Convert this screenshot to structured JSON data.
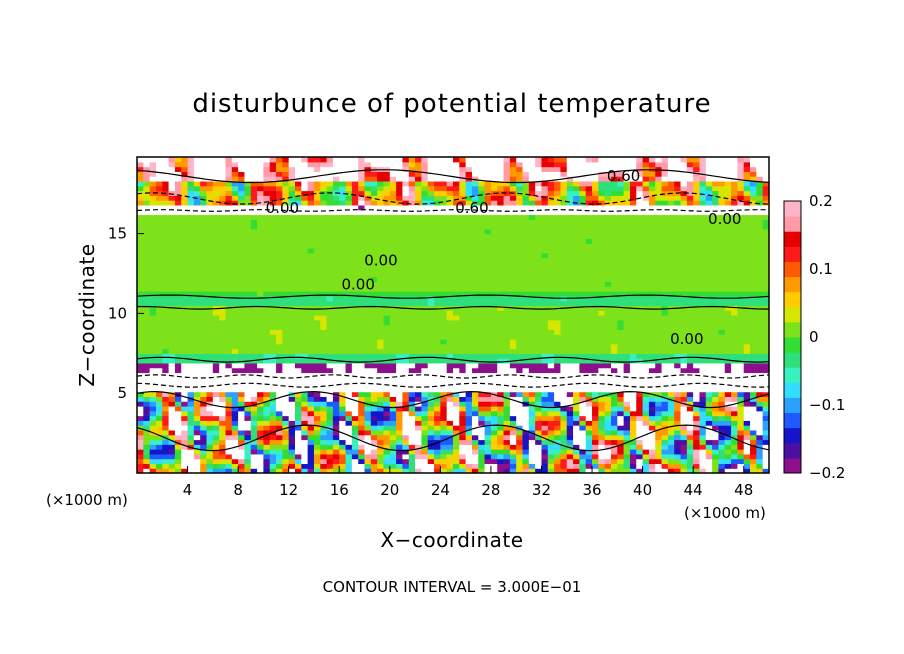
{
  "chart_data": {
    "type": "heatmap",
    "title": "disturbunce of potential temperature",
    "xlabel": "X−coordinate",
    "ylabel": "Z−coordinate",
    "x_units_left": "(×1000 m)",
    "x_units_right": "(×1000 m)",
    "footnote": "CONTOUR INTERVAL = 3.000E−01",
    "xlim": [
      0,
      50
    ],
    "ylim": [
      0,
      19.8
    ],
    "x_ticks": [
      {
        "v": 4,
        "t": "4"
      },
      {
        "v": 8,
        "t": "8"
      },
      {
        "v": 12,
        "t": "12"
      },
      {
        "v": 16,
        "t": "16"
      },
      {
        "v": 20,
        "t": "20"
      },
      {
        "v": 24,
        "t": "24"
      },
      {
        "v": 28,
        "t": "28"
      },
      {
        "v": 32,
        "t": "32"
      },
      {
        "v": 36,
        "t": "36"
      },
      {
        "v": 40,
        "t": "40"
      },
      {
        "v": 44,
        "t": "44"
      },
      {
        "v": 48,
        "t": "48"
      }
    ],
    "y_ticks": [
      {
        "v": 5,
        "t": "5"
      },
      {
        "v": 10,
        "t": "10"
      },
      {
        "v": 15,
        "t": "15"
      }
    ],
    "colorbar": {
      "range": [
        -0.2,
        0.2
      ],
      "ticks": [
        {
          "v": 0.2,
          "t": "0.2"
        },
        {
          "v": 0.1,
          "t": "0.1"
        },
        {
          "v": 0,
          "t": "0"
        },
        {
          "v": -0.1,
          "t": "−0.1"
        },
        {
          "v": -0.2,
          "t": "−0.2"
        }
      ],
      "colors": [
        "#8c0f8c",
        "#4b0fa3",
        "#1414c8",
        "#1e5aff",
        "#2aa0ff",
        "#33ddff",
        "#39f0c0",
        "#2fe07a",
        "#33dd33",
        "#7ee21a",
        "#d6e600",
        "#ffcc00",
        "#ff9900",
        "#ff5a00",
        "#ff1a1a",
        "#e60000",
        "#ff9aa6",
        "#ffb3c6"
      ]
    },
    "contour_labels": [
      {
        "x": 38.5,
        "z": 18.6,
        "t": "0.60"
      },
      {
        "x": 26.5,
        "z": 16.6,
        "t": "0.60"
      },
      {
        "x": 11.5,
        "z": 16.6,
        "t": "0.00"
      },
      {
        "x": 46.5,
        "z": 15.9,
        "t": "0.00"
      },
      {
        "x": 19.3,
        "z": 13.3,
        "t": "0.00"
      },
      {
        "x": 17.5,
        "z": 11.8,
        "t": "0.00"
      },
      {
        "x": 43.5,
        "z": 8.4,
        "t": "0.00"
      }
    ]
  }
}
